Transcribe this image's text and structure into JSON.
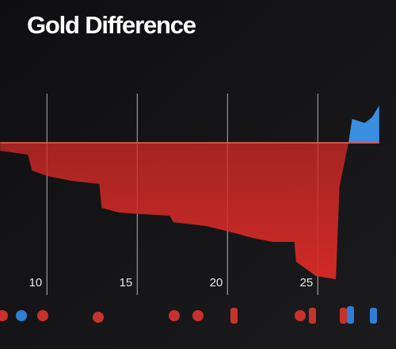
{
  "chart_data": {
    "type": "area",
    "title": "Gold Difference",
    "x": [
      7.41,
      8.95,
      9.17,
      10.04,
      11.36,
      12.9,
      13.03,
      14.0,
      15.3,
      16.8,
      17.0,
      18.8,
      20.1,
      21.4,
      22.5,
      23.7,
      23.8,
      24.9,
      26.0,
      26.2,
      26.7,
      26.9,
      27.6,
      28.0,
      28.4
    ],
    "series": [
      {
        "name": "Gold Difference",
        "color": "#d42a26",
        "positive_color": "#3a8fe0",
        "values": [
          -500,
          -750,
          -1750,
          -2100,
          -2400,
          -2600,
          -4100,
          -4400,
          -4500,
          -4600,
          -5000,
          -5250,
          -5600,
          -6000,
          -6250,
          -6250,
          -7500,
          -8400,
          -8600,
          -2750,
          0,
          1500,
          1250,
          1600,
          2350
        ]
      }
    ],
    "xlim": [
      7.4,
      28.4
    ],
    "xticks": [
      10,
      15,
      20,
      25
    ],
    "ylim": [
      -9500,
      4000
    ],
    "grid": true
  }
}
